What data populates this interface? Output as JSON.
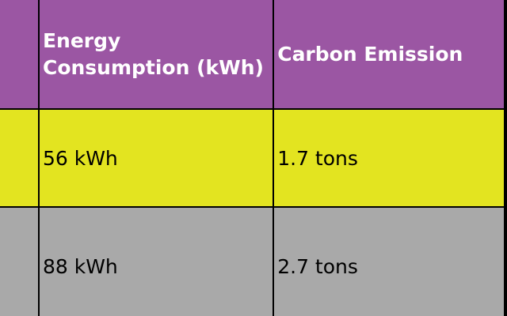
{
  "table": {
    "headers": [
      "",
      "Energy Consumption (kWh)",
      "Carbon Emission"
    ],
    "rows": [
      [
        "",
        "56 kWh",
        "1.7 tons"
      ],
      [
        "",
        "88 kWh",
        "2.7 tons"
      ]
    ]
  },
  "colors": {
    "header_bg": "#9b56a3",
    "row1_bg": "#e3e420",
    "row2_bg": "#a9a9a9",
    "border": "#000000"
  }
}
